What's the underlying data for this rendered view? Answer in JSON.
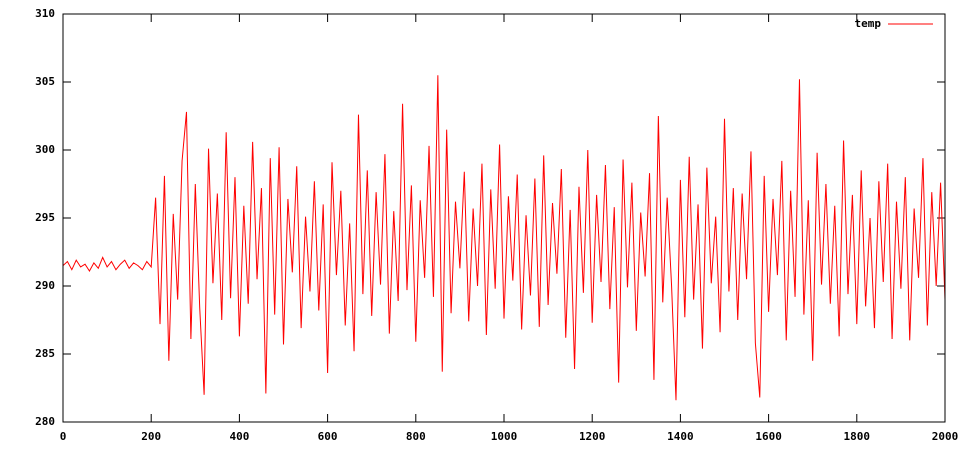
{
  "chart_data": {
    "type": "line",
    "x": [
      0,
      10,
      20,
      30,
      40,
      50,
      60,
      70,
      80,
      90,
      100,
      110,
      120,
      130,
      140,
      150,
      160,
      170,
      180,
      190,
      200,
      210,
      220,
      230,
      240,
      250,
      260,
      270,
      280,
      290,
      300,
      310,
      320,
      330,
      340,
      350,
      360,
      370,
      380,
      390,
      400,
      410,
      420,
      430,
      440,
      450,
      460,
      470,
      480,
      490,
      500,
      510,
      520,
      530,
      540,
      550,
      560,
      570,
      580,
      590,
      600,
      610,
      620,
      630,
      640,
      650,
      660,
      670,
      680,
      690,
      700,
      710,
      720,
      730,
      740,
      750,
      760,
      770,
      780,
      790,
      800,
      810,
      820,
      830,
      840,
      850,
      860,
      870,
      880,
      890,
      900,
      910,
      920,
      930,
      940,
      950,
      960,
      970,
      980,
      990,
      1000,
      1010,
      1020,
      1030,
      1040,
      1050,
      1060,
      1070,
      1080,
      1090,
      1100,
      1110,
      1120,
      1130,
      1140,
      1150,
      1160,
      1170,
      1180,
      1190,
      1200,
      1210,
      1220,
      1230,
      1240,
      1250,
      1260,
      1270,
      1280,
      1290,
      1300,
      1310,
      1320,
      1330,
      1340,
      1350,
      1360,
      1370,
      1380,
      1390,
      1400,
      1410,
      1420,
      1430,
      1440,
      1450,
      1460,
      1470,
      1480,
      1490,
      1500,
      1510,
      1520,
      1530,
      1540,
      1550,
      1560,
      1570,
      1580,
      1590,
      1600,
      1610,
      1620,
      1630,
      1640,
      1650,
      1660,
      1670,
      1680,
      1690,
      1700,
      1710,
      1720,
      1730,
      1740,
      1750,
      1760,
      1770,
      1780,
      1790,
      1800,
      1810,
      1820,
      1830,
      1840,
      1850,
      1860,
      1870,
      1880,
      1890,
      1900,
      1910,
      1920,
      1930,
      1940,
      1950,
      1960,
      1970,
      1980,
      1990,
      2000
    ],
    "series": [
      {
        "name": "temp",
        "color": "#ff0000",
        "values": [
          291.5,
          291.8,
          291.2,
          291.9,
          291.4,
          291.6,
          291.1,
          291.7,
          291.3,
          292.1,
          291.4,
          291.8,
          291.2,
          291.6,
          291.9,
          291.3,
          291.7,
          291.5,
          291.2,
          291.8,
          291.4,
          296.5,
          287.2,
          298.1,
          284.5,
          295.3,
          289.0,
          299.2,
          302.8,
          286.1,
          297.5,
          288.4,
          282.0,
          300.1,
          290.2,
          296.8,
          287.5,
          301.3,
          289.1,
          298.0,
          286.3,
          295.9,
          288.7,
          300.6,
          290.5,
          297.2,
          282.1,
          299.4,
          287.9,
          300.2,
          285.7,
          296.4,
          291.0,
          298.8,
          286.9,
          295.1,
          289.6,
          297.7,
          288.2,
          296.0,
          283.6,
          299.1,
          290.8,
          297.0,
          287.1,
          294.6,
          285.2,
          302.6,
          289.4,
          298.5,
          287.8,
          296.9,
          290.1,
          299.7,
          286.5,
          295.5,
          288.9,
          303.4,
          289.7,
          297.4,
          285.9,
          296.3,
          290.6,
          300.3,
          289.2,
          305.5,
          283.7,
          301.5,
          288.0,
          296.2,
          291.3,
          298.4,
          287.4,
          295.7,
          290.0,
          299.0,
          286.4,
          297.1,
          289.8,
          300.4,
          287.6,
          296.6,
          290.4,
          298.2,
          286.8,
          295.2,
          289.3,
          297.9,
          287.0,
          299.6,
          288.6,
          296.1,
          290.9,
          298.6,
          286.2,
          295.6,
          283.9,
          297.3,
          289.5,
          300.0,
          287.3,
          296.7,
          290.3,
          298.9,
          288.3,
          295.8,
          282.9,
          299.3,
          289.9,
          297.6,
          286.7,
          295.4,
          290.7,
          298.3,
          283.1,
          302.5,
          288.8,
          296.5,
          290.0,
          281.6,
          297.8,
          287.7,
          299.5,
          289.0,
          296.0,
          285.4,
          298.7,
          290.2,
          295.1,
          286.6,
          302.3,
          289.6,
          297.2,
          287.5,
          296.8,
          290.5,
          299.9,
          285.8,
          281.8,
          298.1,
          288.1,
          296.4,
          290.8,
          299.2,
          286.0,
          297.0,
          289.2,
          305.2,
          287.9,
          296.3,
          284.5,
          299.8,
          290.1,
          297.5,
          288.7,
          295.9,
          286.3,
          300.7,
          289.4,
          296.7,
          287.2,
          298.5,
          288.5,
          295.0,
          286.9,
          297.7,
          290.3,
          299.0,
          286.1,
          296.2,
          289.8,
          298.0,
          286.0,
          295.7,
          290.6,
          299.4,
          287.1,
          296.9,
          290.0,
          297.6,
          289.0
        ]
      }
    ],
    "xlim": [
      0,
      2000
    ],
    "xticks": [
      0,
      200,
      400,
      600,
      800,
      1000,
      1200,
      1400,
      1600,
      1800,
      2000
    ],
    "ylim": [
      280,
      310
    ],
    "yticks": [
      280,
      285,
      290,
      295,
      300,
      305,
      310
    ],
    "legend": "top-right"
  }
}
